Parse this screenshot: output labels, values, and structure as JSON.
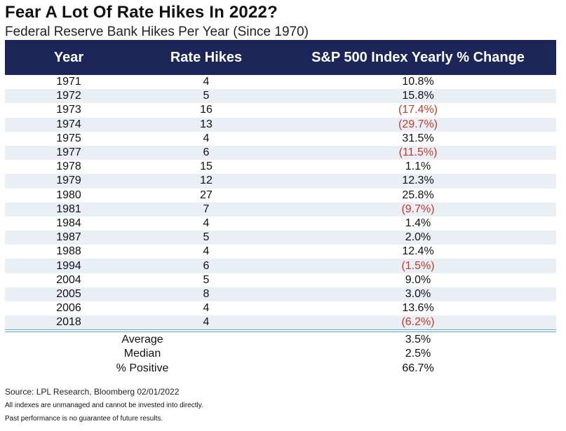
{
  "chart_data": {
    "type": "table",
    "title": "Fear A Lot Of Rate Hikes In 2022?",
    "subtitle": "Federal Reserve Bank Hikes Per Year (Since 1970)",
    "columns": [
      "Year",
      "Rate Hikes",
      "S&P 500 Index Yearly % Change"
    ],
    "rows": [
      {
        "year": "1971",
        "hikes": "4",
        "change": "10.8%",
        "negative": false
      },
      {
        "year": "1972",
        "hikes": "5",
        "change": "15.8%",
        "negative": false
      },
      {
        "year": "1973",
        "hikes": "16",
        "change": "(17.4%)",
        "negative": true
      },
      {
        "year": "1974",
        "hikes": "13",
        "change": "(29.7%)",
        "negative": true
      },
      {
        "year": "1975",
        "hikes": "4",
        "change": "31.5%",
        "negative": false
      },
      {
        "year": "1977",
        "hikes": "6",
        "change": "(11.5%)",
        "negative": true
      },
      {
        "year": "1978",
        "hikes": "15",
        "change": "1.1%",
        "negative": false
      },
      {
        "year": "1979",
        "hikes": "12",
        "change": "12.3%",
        "negative": false
      },
      {
        "year": "1980",
        "hikes": "27",
        "change": "25.8%",
        "negative": false
      },
      {
        "year": "1981",
        "hikes": "7",
        "change": "(9.7%)",
        "negative": true
      },
      {
        "year": "1984",
        "hikes": "4",
        "change": "1.4%",
        "negative": false
      },
      {
        "year": "1987",
        "hikes": "5",
        "change": "2.0%",
        "negative": false
      },
      {
        "year": "1988",
        "hikes": "4",
        "change": "12.4%",
        "negative": false
      },
      {
        "year": "1994",
        "hikes": "6",
        "change": "(1.5%)",
        "negative": true
      },
      {
        "year": "2004",
        "hikes": "5",
        "change": "9.0%",
        "negative": false
      },
      {
        "year": "2005",
        "hikes": "8",
        "change": "3.0%",
        "negative": false
      },
      {
        "year": "2006",
        "hikes": "4",
        "change": "13.6%",
        "negative": false
      },
      {
        "year": "2018",
        "hikes": "4",
        "change": "(6.2%)",
        "negative": true
      }
    ],
    "summary": [
      {
        "label": "Average",
        "value": "3.5%"
      },
      {
        "label": "Median",
        "value": "2.5%"
      },
      {
        "label": "% Positive",
        "value": "66.7%"
      }
    ]
  },
  "footer": {
    "source": "Source: LPL Research, Bloomberg 02/01/2022",
    "note1": "All indexes are unmanaged and cannot be invested into directly.",
    "note2": "Past performance is no guarantee of future results."
  },
  "colors": {
    "header_bg": "#1b2558",
    "row_shade": "#eaeef5",
    "negative_text": "#c0392b",
    "divider": "#5aa6cf"
  }
}
